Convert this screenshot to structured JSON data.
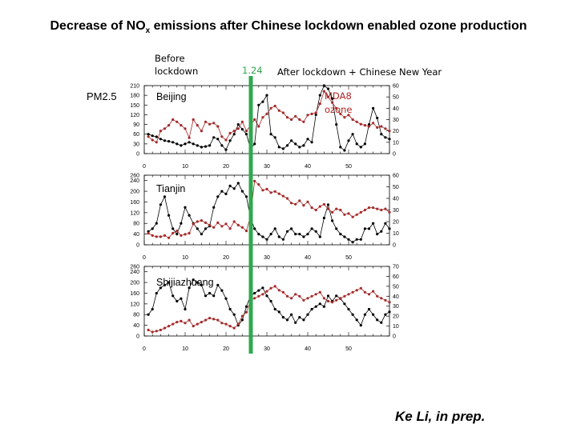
{
  "title": {
    "main": "Decrease of NO",
    "sub": "x",
    "rest": " emissions after Chinese  lockdown enabled ozone production"
  },
  "labels": {
    "before": "Before lockdown",
    "lockdown_date": "1.24",
    "after": "After lockdown + Chinese New Year",
    "pm25": "PM2.5",
    "mda8_line1": "MDA8",
    "mda8_line2": "ozone"
  },
  "credit": "Ke Li, in prep.",
  "colors": {
    "pm25": "#000000",
    "ozone": "#a52a2a",
    "lockdown_line": "#2fa84f"
  },
  "chart_data": [
    {
      "type": "line",
      "panel_label": "Beijing",
      "x": [
        1,
        2,
        3,
        4,
        5,
        6,
        7,
        8,
        9,
        10,
        11,
        12,
        13,
        14,
        15,
        16,
        17,
        18,
        19,
        20,
        21,
        22,
        23,
        24,
        25,
        26,
        27,
        28,
        29,
        30,
        31,
        32,
        33,
        34,
        35,
        36,
        37,
        38,
        39,
        40,
        41,
        42,
        43,
        44,
        45,
        46,
        47,
        48,
        49,
        50,
        51,
        52,
        53,
        54,
        55,
        56,
        57,
        58,
        59,
        60
      ],
      "xticks": [
        0,
        10,
        20,
        30,
        40,
        50
      ],
      "ylim_left": [
        0,
        210
      ],
      "yticks_left": [
        0,
        30,
        60,
        90,
        120,
        150,
        180,
        210
      ],
      "ylim_right": [
        0,
        60
      ],
      "yticks_right": [
        0,
        10,
        20,
        30,
        40,
        50,
        60
      ],
      "series": [
        {
          "axis": "left",
          "values": [
            60,
            55,
            52,
            45,
            40,
            38,
            35,
            30,
            25,
            30,
            35,
            30,
            25,
            20,
            22,
            25,
            50,
            45,
            25,
            12,
            40,
            60,
            90,
            75,
            60,
            15,
            30,
            150,
            160,
            180,
            60,
            50,
            20,
            15,
            25,
            40,
            30,
            20,
            25,
            45,
            35,
            120,
            180,
            210,
            200,
            170,
            90,
            20,
            10,
            40,
            60,
            30,
            20,
            30,
            90,
            140,
            110,
            60,
            50,
            45
          ]
        },
        {
          "axis": "right",
          "values": [
            15,
            12,
            10,
            20,
            22,
            25,
            30,
            28,
            25,
            22,
            14,
            30,
            25,
            20,
            28,
            26,
            27,
            24,
            15,
            12,
            18,
            20,
            22,
            28,
            20,
            25,
            30,
            24,
            32,
            35,
            40,
            42,
            38,
            36,
            32,
            30,
            33,
            30,
            28,
            34,
            35,
            36,
            44,
            55,
            50,
            45,
            40,
            35,
            32,
            34,
            30,
            28,
            26,
            25,
            24,
            27,
            23,
            24,
            22,
            20
          ]
        }
      ]
    },
    {
      "type": "line",
      "panel_label": "Tianjin",
      "x": [
        1,
        2,
        3,
        4,
        5,
        6,
        7,
        8,
        9,
        10,
        11,
        12,
        13,
        14,
        15,
        16,
        17,
        18,
        19,
        20,
        21,
        22,
        23,
        24,
        25,
        26,
        27,
        28,
        29,
        30,
        31,
        32,
        33,
        34,
        35,
        36,
        37,
        38,
        39,
        40,
        41,
        42,
        43,
        44,
        45,
        46,
        47,
        48,
        49,
        50,
        51,
        52,
        53,
        54,
        55,
        56,
        57,
        58,
        59,
        60
      ],
      "xticks": [
        0,
        10,
        20,
        30,
        40,
        50
      ],
      "ylim_left": [
        0,
        260
      ],
      "yticks_left": [
        0,
        40,
        80,
        120,
        160,
        200,
        240,
        260
      ],
      "ylim_right": [
        0,
        60
      ],
      "yticks_right": [
        0,
        10,
        20,
        30,
        40,
        50,
        60
      ],
      "series": [
        {
          "axis": "left",
          "values": [
            50,
            60,
            80,
            150,
            180,
            110,
            60,
            40,
            80,
            140,
            110,
            80,
            60,
            40,
            60,
            70,
            140,
            180,
            200,
            190,
            220,
            210,
            230,
            200,
            180,
            100,
            60,
            40,
            30,
            20,
            40,
            60,
            30,
            20,
            50,
            60,
            40,
            40,
            30,
            40,
            60,
            50,
            30,
            100,
            150,
            90,
            60,
            40,
            30,
            20,
            10,
            20,
            20,
            60,
            60,
            80,
            40,
            50,
            80,
            60
          ]
        },
        {
          "axis": "right",
          "values": [
            10,
            8,
            7,
            7,
            8,
            6,
            10,
            12,
            8,
            9,
            10,
            18,
            20,
            21,
            19,
            17,
            15,
            19,
            16,
            18,
            14,
            20,
            17,
            15,
            12,
            25,
            55,
            52,
            47,
            48,
            45,
            46,
            44,
            42,
            40,
            36,
            35,
            38,
            34,
            37,
            32,
            30,
            33,
            35,
            31,
            28,
            31,
            30,
            26,
            27,
            24,
            26,
            28,
            30,
            32,
            32,
            31,
            30,
            31,
            28
          ]
        }
      ]
    },
    {
      "type": "line",
      "panel_label": "Shijiazhuang",
      "x": [
        1,
        2,
        3,
        4,
        5,
        6,
        7,
        8,
        9,
        10,
        11,
        12,
        13,
        14,
        15,
        16,
        17,
        18,
        19,
        20,
        21,
        22,
        23,
        24,
        25,
        26,
        27,
        28,
        29,
        30,
        31,
        32,
        33,
        34,
        35,
        36,
        37,
        38,
        39,
        40,
        41,
        42,
        43,
        44,
        45,
        46,
        47,
        48,
        49,
        50,
        51,
        52,
        53,
        54,
        55,
        56,
        57,
        58,
        59,
        60
      ],
      "xticks": [
        0,
        10,
        20,
        30,
        40,
        50
      ],
      "ylim_left": [
        0,
        260
      ],
      "yticks_left": [
        0,
        40,
        80,
        120,
        160,
        200,
        240,
        260
      ],
      "ylim_right": [
        0,
        70
      ],
      "yticks_right": [
        0,
        10,
        20,
        30,
        40,
        50,
        60,
        70
      ],
      "series": [
        {
          "axis": "left",
          "values": [
            80,
            100,
            160,
            180,
            190,
            200,
            150,
            130,
            140,
            100,
            180,
            210,
            200,
            190,
            150,
            160,
            150,
            190,
            170,
            140,
            100,
            80,
            40,
            60,
            110,
            150,
            160,
            170,
            180,
            150,
            130,
            100,
            90,
            70,
            60,
            80,
            50,
            70,
            60,
            80,
            100,
            110,
            120,
            110,
            150,
            130,
            150,
            140,
            120,
            100,
            80,
            60,
            40,
            80,
            100,
            80,
            60,
            50,
            80,
            90
          ]
        },
        {
          "axis": "right",
          "values": [
            6,
            4,
            5,
            6,
            8,
            10,
            12,
            14,
            15,
            13,
            16,
            10,
            12,
            14,
            16,
            18,
            17,
            16,
            13,
            12,
            10,
            8,
            12,
            20,
            24,
            36,
            38,
            40,
            42,
            45,
            48,
            50,
            46,
            44,
            40,
            38,
            42,
            40,
            36,
            38,
            40,
            42,
            44,
            38,
            35,
            34,
            36,
            38,
            40,
            42,
            44,
            46,
            48,
            44,
            42,
            45,
            40,
            38,
            36,
            34
          ]
        }
      ]
    }
  ]
}
